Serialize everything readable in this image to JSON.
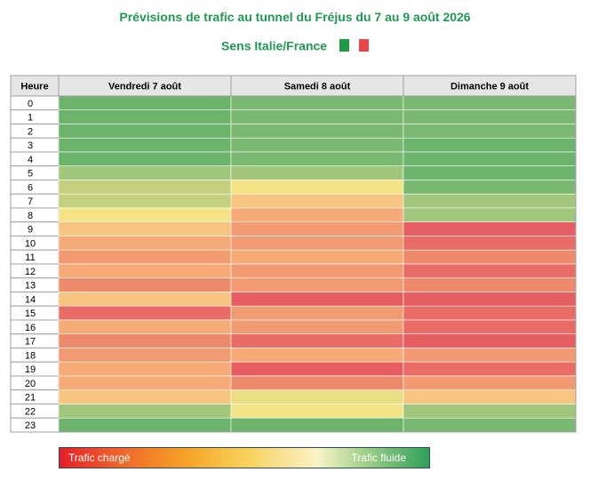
{
  "header": {
    "title": "Prévisions de trafic au tunnel du Fréjus du 7 au 9 août 2026",
    "subtitle": "Sens Italie/France"
  },
  "legend": {
    "left_label": "Trafic chargé",
    "right_label": "Trafic fluide"
  },
  "colors": {
    "dark_green": "#5aad6a",
    "green": "#6cb46c",
    "mid_green": "#7ab972",
    "light_green": "#a1c77c",
    "yellow_green": "#c4d07e",
    "pale_yellow": "#ebdf84",
    "yellow": "#f5e485",
    "light_orange": "#f8c580",
    "orange": "#f6ab77",
    "salmon": "#f29b72",
    "red_orange": "#ee8a6c",
    "red": "#e96c66",
    "deep_red": "#e75e62",
    "header_bg": "#e6e6e6",
    "grid_line": "#ffffff",
    "border": "#a0a0a0"
  },
  "chart_data": {
    "type": "heatmap",
    "title": "Prévisions de trafic au tunnel du Fréjus du 7 au 9 août 2026",
    "subtitle": "Sens Italie/France",
    "row_header": "Heure",
    "columns": [
      "Vendredi 7 août",
      "Samedi 8 août",
      "Dimanche 9 août"
    ],
    "rows": [
      "0",
      "1",
      "2",
      "3",
      "4",
      "5",
      "6",
      "7",
      "8",
      "9",
      "10",
      "11",
      "12",
      "13",
      "14",
      "15",
      "16",
      "17",
      "18",
      "19",
      "20",
      "21",
      "22",
      "23"
    ],
    "scale_note": "0 = Trafic chargé (rouge), 12 = Trafic fluide (vert)",
    "values": [
      [
        11,
        10,
        10
      ],
      [
        11,
        10,
        10
      ],
      [
        11,
        10,
        10
      ],
      [
        11,
        10,
        11
      ],
      [
        11,
        10,
        11
      ],
      [
        9,
        9,
        11
      ],
      [
        8,
        6,
        10
      ],
      [
        8,
        5,
        9
      ],
      [
        6,
        4,
        9
      ],
      [
        5,
        3,
        0
      ],
      [
        4,
        3,
        1
      ],
      [
        3,
        4,
        2
      ],
      [
        4,
        3,
        1
      ],
      [
        2,
        3,
        2
      ],
      [
        5,
        0,
        0
      ],
      [
        1,
        3,
        1
      ],
      [
        4,
        3,
        1
      ],
      [
        2,
        1,
        0
      ],
      [
        3,
        4,
        3
      ],
      [
        4,
        0,
        1
      ],
      [
        4,
        2,
        3
      ],
      [
        5,
        7,
        5
      ],
      [
        9,
        6,
        9
      ],
      [
        11,
        11,
        10
      ]
    ],
    "legend": {
      "low_label": "Trafic chargé",
      "high_label": "Trafic fluide"
    },
    "grid": true
  }
}
